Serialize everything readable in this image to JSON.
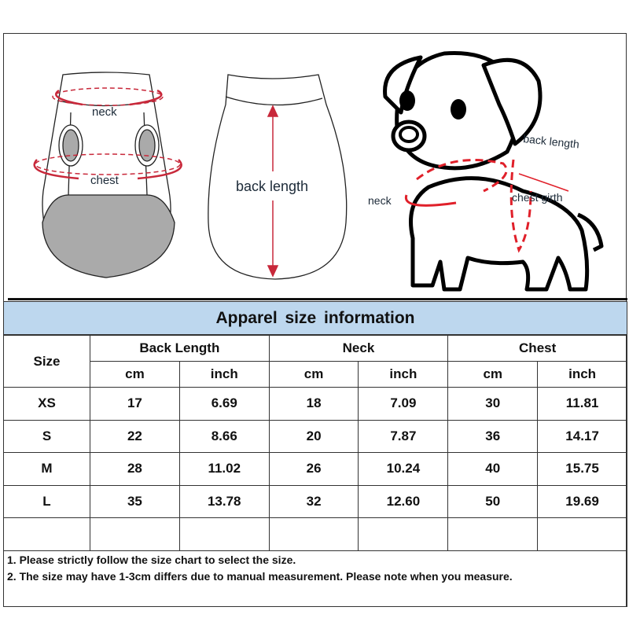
{
  "illustration": {
    "garment_front_labels": {
      "neck": "neck",
      "chest": "chest"
    },
    "garment_back_label": "back length",
    "dog_labels": {
      "back_length": "back length",
      "neck": "neck",
      "chest_girth": "chest girth"
    },
    "accent_color": "#e0202a"
  },
  "table": {
    "title": "Apparel size information",
    "title_bg": "#bdd7ee",
    "size_header": "Size",
    "groups": [
      "Back Length",
      "Neck",
      "Chest"
    ],
    "units": [
      "cm",
      "inch",
      "cm",
      "inch",
      "cm",
      "inch"
    ],
    "rows": [
      {
        "size": "XS",
        "values": [
          "17",
          "6.69",
          "18",
          "7.09",
          "30",
          "11.81"
        ]
      },
      {
        "size": "S",
        "values": [
          "22",
          "8.66",
          "20",
          "7.87",
          "36",
          "14.17"
        ]
      },
      {
        "size": "M",
        "values": [
          "28",
          "11.02",
          "26",
          "10.24",
          "40",
          "15.75"
        ]
      },
      {
        "size": "L",
        "values": [
          "35",
          "13.78",
          "32",
          "12.60",
          "50",
          "19.69"
        ]
      }
    ]
  },
  "notes": [
    "1. Please strictly follow the size chart  to select the size.",
    "2. The size may have 1-3cm differs due to manual measurement. Please note when you measure."
  ]
}
